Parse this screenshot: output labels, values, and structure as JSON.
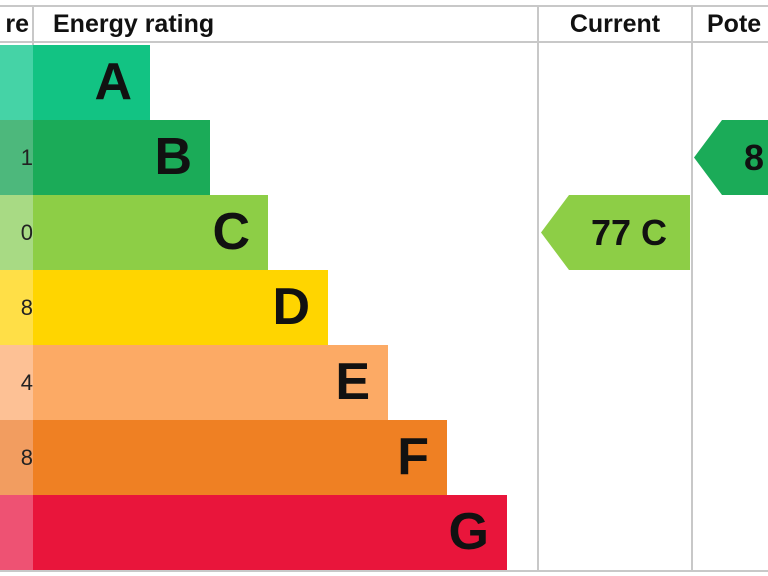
{
  "chart_data": {
    "type": "bar",
    "header": {
      "score_label": "re",
      "rating_label": "Energy rating",
      "current_label": "Current",
      "potential_label": "Pote"
    },
    "bands": [
      {
        "letter": "A",
        "score": "",
        "color": "#12c383",
        "score_color": "#45d3a6"
      },
      {
        "letter": "B",
        "score": "1",
        "color": "#1bab58",
        "score_color": "#4db87c"
      },
      {
        "letter": "C",
        "score": "0",
        "color": "#8dce46",
        "score_color": "#a8da84"
      },
      {
        "letter": "D",
        "score": "8",
        "color": "#ffd500",
        "score_color": "#ffdf47"
      },
      {
        "letter": "E",
        "score": "4",
        "color": "#fcaa65",
        "score_color": "#fdc195"
      },
      {
        "letter": "F",
        "score": "8",
        "color": "#ef8023",
        "score_color": "#f29d60"
      },
      {
        "letter": "G",
        "score": "",
        "color": "#e9153b",
        "score_color": "#ee5273"
      }
    ],
    "current": {
      "value": 77,
      "band": "C",
      "label": "77 C",
      "color": "#8dce46"
    },
    "potential": {
      "band": "B",
      "label": "8",
      "color": "#1bab58"
    }
  }
}
